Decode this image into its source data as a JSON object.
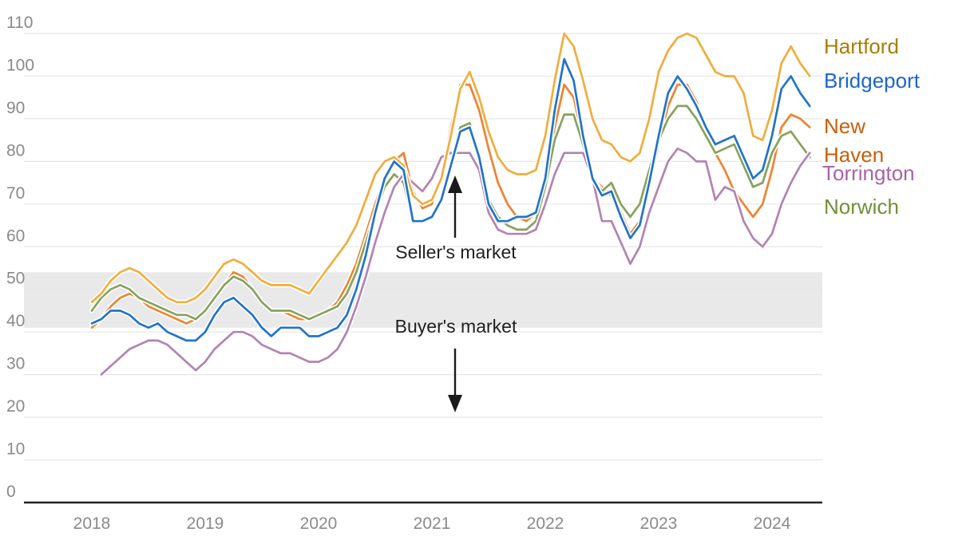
{
  "annotations": {
    "sellers_label": "Seller's market",
    "buyers_label": "Buyer's market"
  },
  "palette": {
    "background": "#ffffff",
    "gridline": "#e6e6e6",
    "neutral_band_fill": "#e9e9e9",
    "axis_line": "#222222",
    "tick_label": "#8a8a8a",
    "annotation_text": "#1f1f1f"
  },
  "chart_data": {
    "type": "line",
    "title": "",
    "frequency": "monthly",
    "x_start": "2018-01",
    "x_end": "2024-05",
    "grid": true,
    "legend_position": "right",
    "ylim": [
      0,
      110
    ],
    "y_ticks": [
      0,
      10,
      20,
      30,
      40,
      50,
      60,
      70,
      80,
      90,
      100,
      110
    ],
    "x_ticks": [
      {
        "label": "2018",
        "month_index": 0
      },
      {
        "label": "2019",
        "month_index": 12
      },
      {
        "label": "2020",
        "month_index": 24
      },
      {
        "label": "2021",
        "month_index": 36
      },
      {
        "label": "2022",
        "month_index": 48
      },
      {
        "label": "2023",
        "month_index": 60
      },
      {
        "label": "2024",
        "month_index": 72
      }
    ],
    "neutral_band": {
      "from": 41,
      "to": 54,
      "meaning_above": "Seller's market",
      "meaning_below": "Buyer's market"
    },
    "series": [
      {
        "name": "Hartford",
        "line_color": "#f0ad3d",
        "label_color": "#a97d04",
        "values": [
          47,
          49,
          52,
          54,
          55,
          54,
          52,
          50,
          48,
          47,
          47,
          48,
          50,
          53,
          56,
          57,
          56,
          54,
          52,
          51,
          51,
          51,
          50,
          49,
          52,
          55,
          58,
          61,
          65,
          71,
          77,
          80,
          81,
          79,
          72,
          70,
          71,
          76,
          86,
          97,
          101,
          95,
          87,
          81,
          78,
          77,
          77,
          78,
          86,
          99,
          110,
          107,
          99,
          90,
          85,
          84,
          81,
          80,
          82,
          90,
          101,
          106,
          109,
          110,
          109,
          105,
          101,
          100,
          100,
          96,
          86,
          85,
          92,
          103,
          107,
          103,
          100
        ]
      },
      {
        "name": "Bridgeport",
        "line_color": "#2173c9",
        "label_color": "#1b67cb",
        "values": [
          42,
          43,
          45,
          45,
          44,
          42,
          41,
          42,
          40,
          39,
          38,
          38,
          40,
          44,
          47,
          48,
          46,
          44,
          41,
          39,
          41,
          41,
          41,
          39,
          39,
          40,
          41,
          44,
          50,
          58,
          68,
          76,
          80,
          78,
          66,
          66,
          67,
          71,
          79,
          87,
          88,
          81,
          70,
          66,
          66,
          67,
          67,
          68,
          76,
          92,
          104,
          99,
          86,
          76,
          72,
          73,
          67,
          62,
          65,
          75,
          86,
          96,
          100,
          97,
          93,
          88,
          84,
          85,
          86,
          81,
          76,
          78,
          86,
          97,
          100,
          96,
          93
        ]
      },
      {
        "name": "New Haven",
        "label_wrapped": "New\nHaven",
        "line_color": "#ee8331",
        "label_color": "#c85f0a",
        "values": [
          41,
          43,
          46,
          48,
          49,
          48,
          46,
          45,
          44,
          43,
          42,
          43,
          45,
          48,
          51,
          54,
          53,
          50,
          47,
          45,
          45,
          44,
          43,
          43,
          44,
          45,
          47,
          51,
          56,
          63,
          70,
          76,
          80,
          82,
          73,
          69,
          70,
          76,
          88,
          98,
          98,
          92,
          83,
          75,
          70,
          67,
          66,
          68,
          76,
          88,
          98,
          95,
          85,
          76,
          74,
          72,
          68,
          63,
          66,
          74,
          84,
          93,
          98,
          98,
          94,
          88,
          82,
          78,
          73,
          70,
          67,
          70,
          78,
          88,
          91,
          90,
          88
        ]
      },
      {
        "name": "Torrington",
        "line_color": "#b383b3",
        "label_color": "#a963a9",
        "values": [
          null,
          30,
          32,
          34,
          36,
          37,
          38,
          38,
          37,
          35,
          33,
          31,
          33,
          36,
          38,
          40,
          40,
          39,
          37,
          36,
          35,
          35,
          34,
          33,
          33,
          34,
          36,
          40,
          46,
          53,
          61,
          68,
          74,
          77,
          75,
          73,
          76,
          81,
          82,
          82,
          82,
          78,
          68,
          64,
          63,
          63,
          63,
          64,
          70,
          77,
          82,
          82,
          82,
          76,
          66,
          66,
          61,
          56,
          60,
          68,
          74,
          80,
          83,
          82,
          80,
          80,
          71,
          74,
          73,
          66,
          62,
          60,
          63,
          70,
          75,
          79,
          82
        ]
      },
      {
        "name": "Norwich",
        "line_color": "#87a25c",
        "label_color": "#6f9038",
        "values": [
          45,
          48,
          50,
          51,
          50,
          48,
          47,
          46,
          45,
          44,
          44,
          43,
          45,
          48,
          51,
          53,
          52,
          50,
          47,
          45,
          45,
          45,
          44,
          43,
          44,
          45,
          46,
          49,
          54,
          61,
          68,
          74,
          77,
          75,
          66,
          66,
          67,
          71,
          80,
          88,
          89,
          82,
          71,
          67,
          65,
          64,
          64,
          66,
          74,
          85,
          91,
          91,
          84,
          76,
          73,
          75,
          70,
          67,
          70,
          78,
          85,
          90,
          93,
          93,
          90,
          86,
          82,
          83,
          84,
          79,
          74,
          75,
          82,
          86,
          87,
          84,
          81
        ]
      }
    ]
  }
}
